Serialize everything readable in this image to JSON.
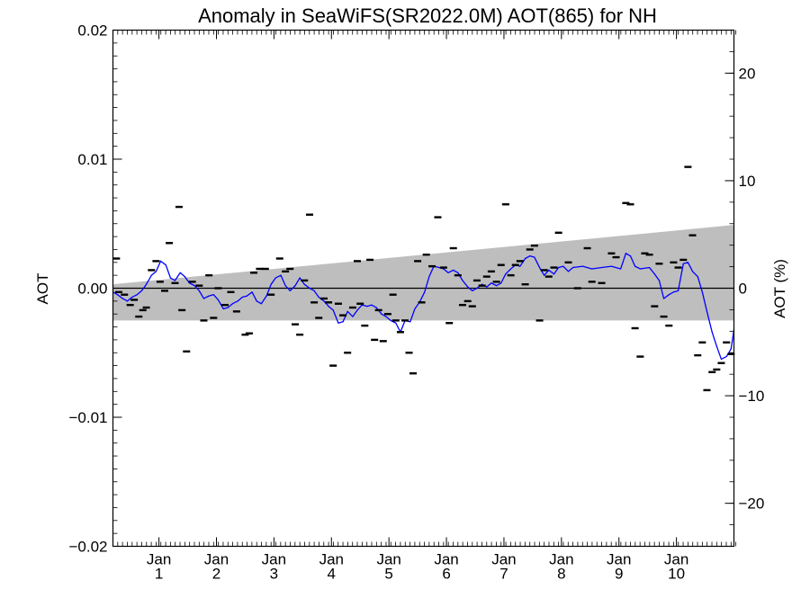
{
  "chart_data": {
    "type": "line",
    "title": "Anomaly in SeaWiFS(SR2022.0M) AOT(865) for NH",
    "ylabel": "AOT",
    "ylabel_right": "AOT (%)",
    "xlim": [
      0,
      10.8
    ],
    "ylim": [
      -0.02,
      0.02
    ],
    "ylim_right": [
      -24,
      24
    ],
    "y_ticks": [
      {
        "value": 0.02,
        "label": "0.02"
      },
      {
        "value": 0.01,
        "label": "0.01"
      },
      {
        "value": 0.0,
        "label": "0.00"
      },
      {
        "value": -0.01,
        "label": "−0.01"
      },
      {
        "value": -0.02,
        "label": "−0.02"
      }
    ],
    "y_right_ticks": [
      {
        "value": 20,
        "label": "20"
      },
      {
        "value": 10,
        "label": "10"
      },
      {
        "value": 0,
        "label": "0"
      },
      {
        "value": -10,
        "label": "−10"
      },
      {
        "value": -20,
        "label": "−20"
      }
    ],
    "x_ticks": [
      {
        "value": 0.8,
        "month": "Jan",
        "year": "1"
      },
      {
        "value": 1.8,
        "month": "Jan",
        "year": "2"
      },
      {
        "value": 2.8,
        "month": "Jan",
        "year": "3"
      },
      {
        "value": 3.8,
        "month": "Jan",
        "year": "4"
      },
      {
        "value": 4.8,
        "month": "Jan",
        "year": "5"
      },
      {
        "value": 5.8,
        "month": "Jan",
        "year": "6"
      },
      {
        "value": 6.8,
        "month": "Jan",
        "year": "7"
      },
      {
        "value": 7.8,
        "month": "Jan",
        "year": "8"
      },
      {
        "value": 8.8,
        "month": "Jan",
        "year": "9"
      },
      {
        "value": 9.8,
        "month": "Jan",
        "year": "10"
      }
    ],
    "band": {
      "x": [
        0,
        10.8
      ],
      "upper": [
        0.0003,
        0.0049
      ],
      "lower": [
        -0.0025,
        -0.0025
      ],
      "color": "#bebebe"
    },
    "zero_line": 0,
    "series": [
      {
        "style": "line",
        "color": "#0000ff",
        "points": [
          [
            0.0,
            -0.0003
          ],
          [
            0.08,
            -0.0005
          ],
          [
            0.17,
            -0.0008
          ],
          [
            0.25,
            -0.001
          ],
          [
            0.33,
            -0.0007
          ],
          [
            0.42,
            -0.0005
          ],
          [
            0.5,
            -0.0002
          ],
          [
            0.58,
            0.0003
          ],
          [
            0.67,
            0.001
          ],
          [
            0.75,
            0.0013
          ],
          [
            0.83,
            0.0021
          ],
          [
            0.92,
            0.0018
          ],
          [
            1.0,
            0.0008
          ],
          [
            1.08,
            0.0006
          ],
          [
            1.17,
            0.0012
          ],
          [
            1.25,
            0.0009
          ],
          [
            1.33,
            0.0004
          ],
          [
            1.42,
            0.0002
          ],
          [
            1.5,
            -0.0002
          ],
          [
            1.58,
            -0.0008
          ],
          [
            1.67,
            -0.0006
          ],
          [
            1.75,
            -0.0005
          ],
          [
            1.83,
            -0.0009
          ],
          [
            1.92,
            -0.0016
          ],
          [
            2.0,
            -0.0015
          ],
          [
            2.08,
            -0.0012
          ],
          [
            2.17,
            -0.001
          ],
          [
            2.25,
            -0.0007
          ],
          [
            2.33,
            -0.0006
          ],
          [
            2.42,
            -0.0003
          ],
          [
            2.5,
            -0.001
          ],
          [
            2.58,
            -0.0012
          ],
          [
            2.67,
            -0.0006
          ],
          [
            2.75,
            0.0003
          ],
          [
            2.83,
            0.0008
          ],
          [
            2.92,
            0.001
          ],
          [
            3.0,
            0.0002
          ],
          [
            3.08,
            -0.0002
          ],
          [
            3.17,
            0.0002
          ],
          [
            3.25,
            0.0008
          ],
          [
            3.33,
            0.0003
          ],
          [
            3.42,
            0.0
          ],
          [
            3.5,
            -0.0002
          ],
          [
            3.58,
            -0.0007
          ],
          [
            3.67,
            -0.001
          ],
          [
            3.75,
            -0.0014
          ],
          [
            3.83,
            -0.0017
          ],
          [
            3.92,
            -0.0027
          ],
          [
            4.0,
            -0.0026
          ],
          [
            4.08,
            -0.0018
          ],
          [
            4.17,
            -0.0022
          ],
          [
            4.25,
            -0.0017
          ],
          [
            4.33,
            -0.0013
          ],
          [
            4.42,
            -0.0014
          ],
          [
            4.5,
            -0.0013
          ],
          [
            4.58,
            -0.0015
          ],
          [
            4.67,
            -0.002
          ],
          [
            4.75,
            -0.0022
          ],
          [
            4.83,
            -0.0025
          ],
          [
            4.92,
            -0.0027
          ],
          [
            5.0,
            -0.0034
          ],
          [
            5.08,
            -0.0025
          ],
          [
            5.17,
            -0.0026
          ],
          [
            5.25,
            -0.0016
          ],
          [
            5.33,
            -0.0011
          ],
          [
            5.42,
            -0.0003
          ],
          [
            5.5,
            0.0009
          ],
          [
            5.58,
            0.0017
          ],
          [
            5.67,
            0.0016
          ],
          [
            5.75,
            0.0015
          ],
          [
            5.83,
            0.0012
          ],
          [
            5.92,
            0.0014
          ],
          [
            6.0,
            0.0012
          ],
          [
            6.08,
            0.0006
          ],
          [
            6.17,
            0.0001
          ],
          [
            6.25,
            -0.0002
          ],
          [
            6.33,
            0.0
          ],
          [
            6.42,
            0.0003
          ],
          [
            6.5,
            0.0001
          ],
          [
            6.58,
            0.0004
          ],
          [
            6.67,
            0.0002
          ],
          [
            6.75,
            0.0004
          ],
          [
            6.83,
            0.0011
          ],
          [
            6.92,
            0.0015
          ],
          [
            7.0,
            0.0018
          ],
          [
            7.08,
            0.0017
          ],
          [
            7.17,
            0.0023
          ],
          [
            7.25,
            0.0025
          ],
          [
            7.33,
            0.0024
          ],
          [
            7.42,
            0.0016
          ],
          [
            7.5,
            0.001
          ],
          [
            7.58,
            0.0014
          ],
          [
            7.67,
            0.0011
          ],
          [
            7.75,
            0.0016
          ],
          [
            7.83,
            0.0017
          ],
          [
            7.92,
            0.0013
          ],
          [
            8.0,
            0.0016
          ],
          [
            8.17,
            0.0017
          ],
          [
            8.33,
            0.0015
          ],
          [
            8.5,
            0.0016
          ],
          [
            8.67,
            0.0017
          ],
          [
            8.83,
            0.0015
          ],
          [
            8.92,
            0.0027
          ],
          [
            9.0,
            0.0025
          ],
          [
            9.08,
            0.0017
          ],
          [
            9.17,
            0.0015
          ],
          [
            9.33,
            0.0016
          ],
          [
            9.42,
            0.0011
          ],
          [
            9.5,
            0.0006
          ],
          [
            9.58,
            -0.0008
          ],
          [
            9.67,
            -0.0005
          ],
          [
            9.75,
            -0.0003
          ],
          [
            9.83,
            -0.0002
          ],
          [
            9.92,
            0.0019
          ],
          [
            10.0,
            0.002
          ],
          [
            10.08,
            0.0013
          ],
          [
            10.17,
            0.0009
          ],
          [
            10.25,
            -0.0003
          ],
          [
            10.33,
            -0.0018
          ],
          [
            10.42,
            -0.0034
          ],
          [
            10.5,
            -0.0045
          ],
          [
            10.58,
            -0.0055
          ],
          [
            10.67,
            -0.0053
          ],
          [
            10.75,
            -0.0047
          ],
          [
            10.8,
            -0.0032
          ]
        ]
      },
      {
        "style": "dash",
        "color": "#000000",
        "points": [
          [
            0.06,
            0.0023
          ],
          [
            0.1,
            -0.0003
          ],
          [
            0.2,
            -0.0005
          ],
          [
            0.3,
            -0.0013
          ],
          [
            0.37,
            -0.0009
          ],
          [
            0.45,
            -0.0022
          ],
          [
            0.52,
            -0.0017
          ],
          [
            0.58,
            -0.0015
          ],
          [
            0.67,
            0.0014
          ],
          [
            0.75,
            0.0021
          ],
          [
            0.82,
            0.0005
          ],
          [
            0.9,
            -0.0002
          ],
          [
            0.98,
            0.0035
          ],
          [
            1.08,
            0.0004
          ],
          [
            1.15,
            0.0063
          ],
          [
            1.2,
            -0.0017
          ],
          [
            1.28,
            -0.0049
          ],
          [
            1.38,
            0.0005
          ],
          [
            1.5,
            0.0002
          ],
          [
            1.58,
            -0.0025
          ],
          [
            1.67,
            0.001
          ],
          [
            1.75,
            -0.0023
          ],
          [
            1.83,
            0.0
          ],
          [
            1.95,
            -0.0013
          ],
          [
            2.05,
            -0.0003
          ],
          [
            2.15,
            -0.0018
          ],
          [
            2.3,
            -0.0036
          ],
          [
            2.37,
            -0.0035
          ],
          [
            2.45,
            0.0012
          ],
          [
            2.55,
            0.0015
          ],
          [
            2.65,
            0.0015
          ],
          [
            2.75,
            -0.0005
          ],
          [
            2.9,
            0.0023
          ],
          [
            3.0,
            0.0013
          ],
          [
            3.08,
            0.0015
          ],
          [
            3.17,
            -0.0028
          ],
          [
            3.25,
            -0.0036
          ],
          [
            3.33,
            0.0006
          ],
          [
            3.42,
            0.0057
          ],
          [
            3.5,
            -0.0011
          ],
          [
            3.58,
            -0.0023
          ],
          [
            3.67,
            -0.0008
          ],
          [
            3.75,
            -0.0011
          ],
          [
            3.83,
            -0.006
          ],
          [
            3.92,
            -0.0012
          ],
          [
            4.0,
            -0.0021
          ],
          [
            4.08,
            -0.005
          ],
          [
            4.17,
            -0.0015
          ],
          [
            4.25,
            0.0021
          ],
          [
            4.3,
            -0.0012
          ],
          [
            4.38,
            -0.0029
          ],
          [
            4.47,
            0.0022
          ],
          [
            4.55,
            -0.004
          ],
          [
            4.62,
            -0.0017
          ],
          [
            4.7,
            -0.0041
          ],
          [
            4.78,
            -0.002
          ],
          [
            4.87,
            -0.0005
          ],
          [
            4.92,
            -0.0025
          ],
          [
            5.0,
            -0.0034
          ],
          [
            5.08,
            -0.0025
          ],
          [
            5.15,
            -0.005
          ],
          [
            5.22,
            -0.0066
          ],
          [
            5.3,
            0.0021
          ],
          [
            5.37,
            -0.0011
          ],
          [
            5.45,
            0.0026
          ],
          [
            5.55,
            0.0017
          ],
          [
            5.65,
            0.0055
          ],
          [
            5.75,
            0.0016
          ],
          [
            5.85,
            -0.0027
          ],
          [
            5.92,
            0.0031
          ],
          [
            6.0,
            0.001
          ],
          [
            6.08,
            -0.0013
          ],
          [
            6.17,
            -0.001
          ],
          [
            6.25,
            -0.0014
          ],
          [
            6.33,
            0.0006
          ],
          [
            6.42,
            0.0002
          ],
          [
            6.5,
            0.0009
          ],
          [
            6.58,
            0.0013
          ],
          [
            6.67,
            0.0005
          ],
          [
            6.75,
            0.0018
          ],
          [
            6.83,
            0.0065
          ],
          [
            6.92,
            0.001
          ],
          [
            7.0,
            0.0018
          ],
          [
            7.08,
            0.0021
          ],
          [
            7.17,
            0.0003
          ],
          [
            7.25,
            0.003
          ],
          [
            7.33,
            0.0033
          ],
          [
            7.42,
            -0.0025
          ],
          [
            7.5,
            0.0014
          ],
          [
            7.58,
            0.0009
          ],
          [
            7.67,
            0.0016
          ],
          [
            7.75,
            0.0043
          ],
          [
            7.92,
            0.002
          ],
          [
            8.08,
            0.0
          ],
          [
            8.25,
            0.0031
          ],
          [
            8.33,
            0.0005
          ],
          [
            8.5,
            0.0004
          ],
          [
            8.67,
            0.0027
          ],
          [
            8.75,
            0.0024
          ],
          [
            8.92,
            0.0066
          ],
          [
            9.0,
            0.0065
          ],
          [
            9.08,
            -0.0031
          ],
          [
            9.17,
            -0.0053
          ],
          [
            9.25,
            0.0027
          ],
          [
            9.33,
            0.0026
          ],
          [
            9.42,
            -0.0014
          ],
          [
            9.5,
            0.0019
          ],
          [
            9.58,
            -0.0022
          ],
          [
            9.67,
            -0.0029
          ],
          [
            9.75,
            0.002
          ],
          [
            9.83,
            0.0016
          ],
          [
            9.92,
            0.0022
          ],
          [
            10.0,
            0.0094
          ],
          [
            10.08,
            0.0041
          ],
          [
            10.17,
            -0.0052
          ],
          [
            10.25,
            -0.0042
          ],
          [
            10.33,
            -0.0079
          ],
          [
            10.42,
            -0.0065
          ],
          [
            10.5,
            -0.0063
          ],
          [
            10.58,
            -0.0058
          ],
          [
            10.67,
            -0.0042
          ],
          [
            10.75,
            -0.0051
          ]
        ]
      }
    ],
    "grid": false,
    "legend": "none"
  }
}
